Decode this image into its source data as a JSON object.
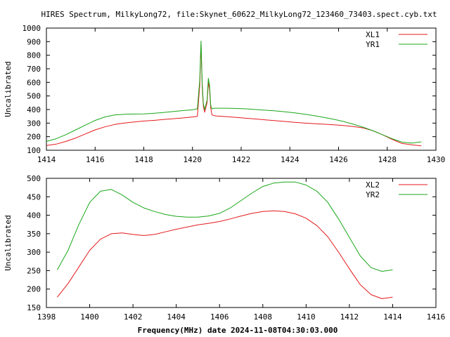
{
  "title": "HIRES Spectrum, MilkyLong72, file:Skynet_60622_MilkyLong72_123460_73403.spect.cyb.txt",
  "xlabel": "Frequency(MHz) date 2024-11-08T04:30:03.000",
  "colors": {
    "red": "#e41a1c",
    "green": "#1aa71a"
  },
  "chart_data": [
    {
      "type": "line",
      "ylabel": "Uncalibrated",
      "xlim": [
        1414,
        1430
      ],
      "ylim": [
        100,
        1000
      ],
      "xticks": [
        1414,
        1416,
        1418,
        1420,
        1422,
        1424,
        1426,
        1428,
        1430
      ],
      "yticks": [
        100,
        200,
        300,
        400,
        500,
        600,
        700,
        800,
        900,
        1000
      ],
      "legend": "top-right",
      "grid": false,
      "series": [
        {
          "name": "XL1",
          "color": "red",
          "x": [
            1414.0,
            1414.4,
            1414.8,
            1415.2,
            1415.6,
            1416.0,
            1416.4,
            1416.8,
            1417.2,
            1417.6,
            1418.0,
            1418.4,
            1418.8,
            1419.2,
            1419.6,
            1420.0,
            1420.2,
            1420.3,
            1420.35,
            1420.4,
            1420.45,
            1420.5,
            1420.6,
            1420.65,
            1420.7,
            1420.75,
            1420.8,
            1420.9,
            1421.0,
            1421.4,
            1421.8,
            1422.2,
            1422.6,
            1423.0,
            1423.4,
            1423.8,
            1424.2,
            1424.6,
            1425.0,
            1425.4,
            1425.8,
            1426.2,
            1426.6,
            1427.0,
            1427.4,
            1427.8,
            1428.2,
            1428.6,
            1429.0,
            1429.4
          ],
          "y": [
            135,
            145,
            165,
            190,
            220,
            250,
            272,
            290,
            300,
            308,
            315,
            320,
            326,
            332,
            338,
            345,
            350,
            580,
            880,
            560,
            420,
            380,
            450,
            600,
            550,
            410,
            360,
            355,
            352,
            348,
            342,
            336,
            330,
            324,
            318,
            312,
            306,
            300,
            296,
            292,
            288,
            282,
            275,
            265,
            245,
            215,
            180,
            150,
            140,
            132
          ]
        },
        {
          "name": "YR1",
          "color": "green",
          "x": [
            1414.0,
            1414.4,
            1414.8,
            1415.2,
            1415.6,
            1416.0,
            1416.4,
            1416.8,
            1417.2,
            1417.6,
            1418.0,
            1418.4,
            1418.8,
            1419.2,
            1419.6,
            1420.0,
            1420.2,
            1420.3,
            1420.35,
            1420.4,
            1420.45,
            1420.5,
            1420.6,
            1420.65,
            1420.7,
            1420.75,
            1420.8,
            1420.9,
            1421.0,
            1421.4,
            1421.8,
            1422.2,
            1422.6,
            1423.0,
            1423.4,
            1423.8,
            1424.2,
            1424.6,
            1425.0,
            1425.4,
            1425.8,
            1426.2,
            1426.6,
            1427.0,
            1427.4,
            1427.8,
            1428.2,
            1428.6,
            1429.0,
            1429.4
          ],
          "y": [
            165,
            185,
            215,
            250,
            285,
            320,
            345,
            360,
            365,
            367,
            368,
            372,
            378,
            385,
            392,
            398,
            405,
            620,
            905,
            590,
            440,
            400,
            470,
            630,
            580,
            430,
            405,
            410,
            410,
            410,
            408,
            405,
            400,
            395,
            390,
            383,
            375,
            366,
            355,
            342,
            328,
            312,
            292,
            270,
            245,
            215,
            185,
            160,
            152,
            162
          ]
        }
      ]
    },
    {
      "type": "line",
      "ylabel": "Uncalibrated",
      "xlim": [
        1398,
        1416
      ],
      "ylim": [
        150,
        500
      ],
      "xticks": [
        1398,
        1400,
        1402,
        1404,
        1406,
        1408,
        1410,
        1412,
        1414,
        1416
      ],
      "yticks": [
        150,
        200,
        250,
        300,
        350,
        400,
        450,
        500
      ],
      "legend": "top-right",
      "grid": false,
      "series": [
        {
          "name": "XL2",
          "color": "red",
          "x": [
            1398.5,
            1399.0,
            1399.5,
            1400.0,
            1400.5,
            1401.0,
            1401.5,
            1402.0,
            1402.5,
            1403.0,
            1403.5,
            1404.0,
            1404.5,
            1405.0,
            1405.5,
            1406.0,
            1406.5,
            1407.0,
            1407.5,
            1408.0,
            1408.5,
            1409.0,
            1409.5,
            1410.0,
            1410.5,
            1411.0,
            1411.5,
            1412.0,
            1412.5,
            1413.0,
            1413.5,
            1414.0
          ],
          "y": [
            178,
            215,
            260,
            305,
            335,
            350,
            352,
            348,
            345,
            348,
            355,
            362,
            368,
            374,
            378,
            383,
            390,
            398,
            405,
            410,
            412,
            410,
            404,
            392,
            372,
            342,
            300,
            255,
            212,
            185,
            174,
            178
          ]
        },
        {
          "name": "YR2",
          "color": "green",
          "x": [
            1398.5,
            1399.0,
            1399.5,
            1400.0,
            1400.5,
            1401.0,
            1401.5,
            1402.0,
            1402.5,
            1403.0,
            1403.5,
            1404.0,
            1404.5,
            1405.0,
            1405.5,
            1406.0,
            1406.5,
            1407.0,
            1407.5,
            1408.0,
            1408.5,
            1409.0,
            1409.5,
            1410.0,
            1410.5,
            1411.0,
            1411.5,
            1412.0,
            1412.5,
            1413.0,
            1413.5,
            1414.0
          ],
          "y": [
            252,
            305,
            375,
            435,
            465,
            470,
            455,
            435,
            420,
            410,
            402,
            397,
            395,
            395,
            398,
            405,
            420,
            440,
            460,
            478,
            487,
            490,
            490,
            482,
            465,
            435,
            390,
            340,
            290,
            258,
            248,
            252
          ]
        }
      ]
    }
  ]
}
